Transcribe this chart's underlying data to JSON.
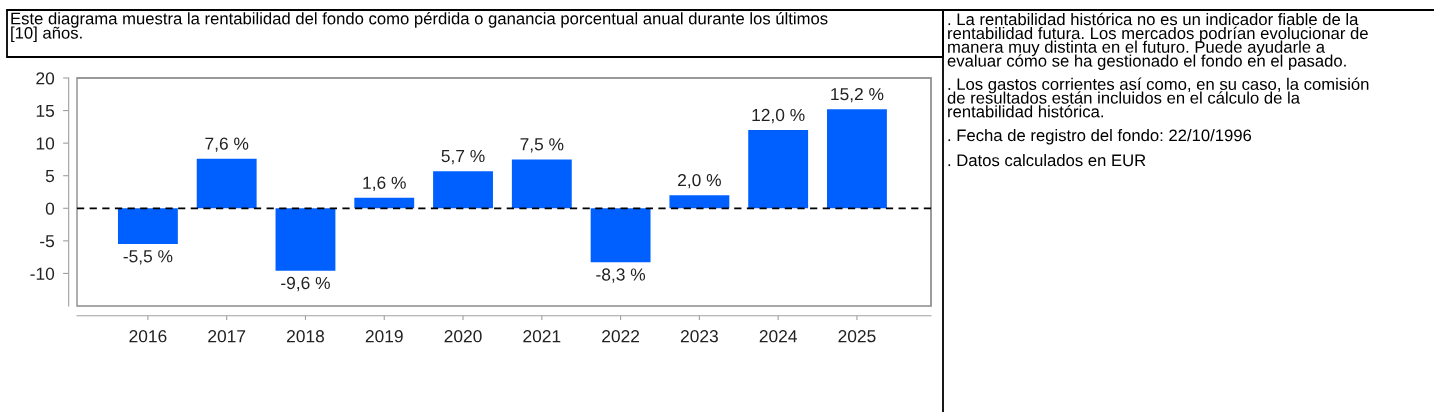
{
  "chart_data": {
    "type": "bar",
    "title": "Este diagrama muestra la rentabilidad del fondo como pérdida o ganancia porcentual anual durante los últimos\n[10] años.",
    "categories": [
      "2016",
      "2017",
      "2018",
      "2019",
      "2020",
      "2021",
      "2022",
      "2023",
      "2024",
      "2025"
    ],
    "values": [
      -5.5,
      7.6,
      -9.6,
      1.6,
      5.7,
      7.5,
      -8.3,
      2.0,
      12.0,
      15.2
    ],
    "value_labels": [
      "-5,5 %",
      "7,6 %",
      "-9,6 %",
      "1,6 %",
      "5,7 %",
      "7,5 %",
      "-8,3 %",
      "2,0 %",
      "12,0 %",
      "15,2 %"
    ],
    "color": "#0060ff",
    "ylim": [
      -15,
      20
    ],
    "yticks": [
      -10,
      -5,
      0,
      5,
      10,
      15,
      20
    ],
    "ref_lines": [
      {
        "axis": "y",
        "value": 0,
        "color": "#000000",
        "line_style": "dashed"
      }
    ],
    "grid": false,
    "annotations": [
      ". La rentabilidad histórica no es un indicador fiable de la\nrentabilidad futura. Los mercados podrían evolucionar de\nmanera muy distinta en el futuro. Puede ayudarle a\nevaluar cómo se ha gestionado el fondo en el pasado.",
      ". Los gastos corrientes así como, en su caso, la comisión\nde resultados están incluidos en el cálculo de la\nrentabilidad histórica.",
      ". Fecha de registro del fondo: 22/10/1996",
      ". Datos calculados en EUR"
    ]
  }
}
